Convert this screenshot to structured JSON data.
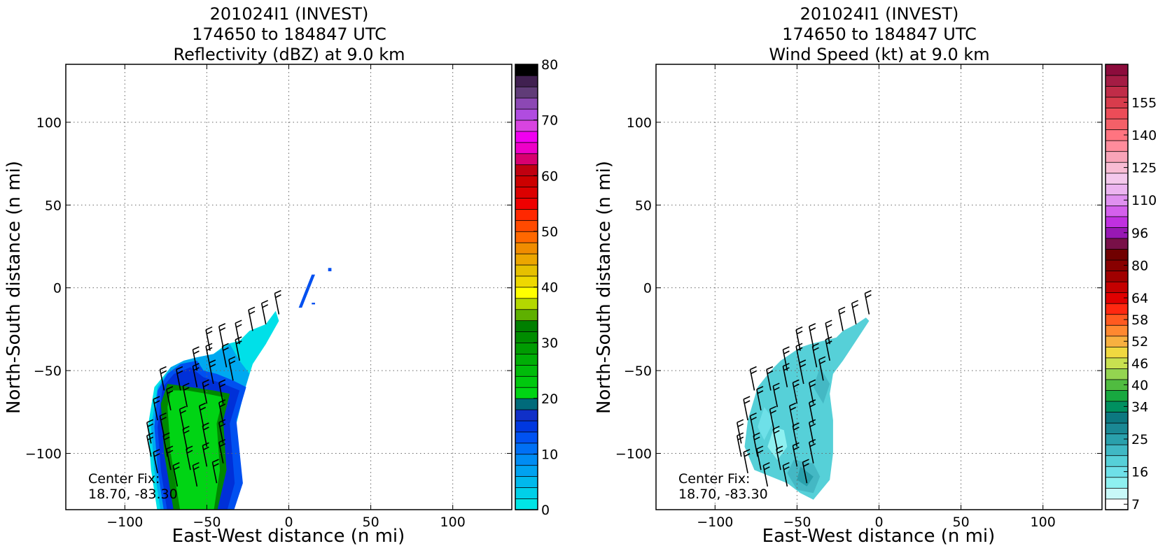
{
  "chart_data": [
    {
      "type": "heatmap",
      "title_lines": [
        "201024I1 (INVEST)",
        "174650 to 184847 UTC",
        "Reflectivity (dBZ) at 9.0 km"
      ],
      "xlabel": "East-West distance (n mi)",
      "ylabel": "North-South distance (n mi)",
      "xlim": [
        -136,
        136
      ],
      "ylim": [
        -134,
        135
      ],
      "xticks": [
        -100,
        -50,
        0,
        50,
        100
      ],
      "yticks": [
        -100,
        -50,
        0,
        50,
        100
      ],
      "grid": true,
      "annotation": [
        "Center Fix:",
        "18.70, -83.30"
      ],
      "colorbar": {
        "min": 0,
        "max": 80,
        "tick_values": [
          0,
          10,
          20,
          30,
          40,
          50,
          60,
          70,
          80
        ],
        "colors": [
          "#00e5e5",
          "#00d0e8",
          "#00b9ec",
          "#00a2f0",
          "#008cf3",
          "#0070f5",
          "#0052f2",
          "#0038e0",
          "#1030c8",
          "#006a7a",
          "#00d414",
          "#00c80e",
          "#00bb0a",
          "#00ae06",
          "#009c02",
          "#008c00",
          "#007f00",
          "#5eb000",
          "#b4d800",
          "#ffff00",
          "#eed800",
          "#e6c000",
          "#eca600",
          "#f08c00",
          "#ff6800",
          "#ff4a00",
          "#ff2800",
          "#ee0000",
          "#dc0000",
          "#cc0000",
          "#c00010",
          "#d80070",
          "#ee00c8",
          "#f000f0",
          "#d844e0",
          "#b04ce0",
          "#8c48b4",
          "#603c78",
          "#402050",
          "#000000"
        ]
      },
      "field": {
        "color": "#00c814",
        "polygons": [
          {
            "color": "#00e0e8",
            "points": [
              [
                -8,
                -14
              ],
              [
                -14,
                -22
              ],
              [
                -24,
                -26
              ],
              [
                -30,
                -32
              ],
              [
                -38,
                -34
              ],
              [
                -46,
                -40
              ],
              [
                -56,
                -42
              ],
              [
                -64,
                -44
              ],
              [
                -72,
                -48
              ],
              [
                -82,
                -60
              ],
              [
                -86,
                -84
              ],
              [
                -84,
                -110
              ],
              [
                -80,
                -136
              ],
              [
                -34,
                -136
              ],
              [
                -30,
                -116
              ],
              [
                -32,
                -82
              ],
              [
                -27,
                -62
              ],
              [
                -22,
                -46
              ],
              [
                -14,
                -34
              ],
              [
                -6,
                -20
              ]
            ]
          },
          {
            "color": "#00a8f0",
            "points": [
              [
                -36,
                -34
              ],
              [
                -46,
                -40
              ],
              [
                -56,
                -42
              ],
              [
                -64,
                -44
              ],
              [
                -72,
                -48
              ],
              [
                -80,
                -60
              ],
              [
                -84,
                -84
              ],
              [
                -82,
                -110
              ],
              [
                -78,
                -136
              ],
              [
                -34,
                -136
              ],
              [
                -30,
                -116
              ],
              [
                -32,
                -82
              ],
              [
                -27,
                -62
              ],
              [
                -24,
                -52
              ],
              [
                -30,
                -44
              ]
            ]
          },
          {
            "color": "#0050f0",
            "points": [
              [
                -56,
                -44
              ],
              [
                -66,
                -46
              ],
              [
                -74,
                -52
              ],
              [
                -80,
                -62
              ],
              [
                -82,
                -84
              ],
              [
                -80,
                -110
              ],
              [
                -76,
                -136
              ],
              [
                -34,
                -136
              ],
              [
                -28,
                -118
              ],
              [
                -32,
                -80
              ],
              [
                -26,
                -60
              ],
              [
                -34,
                -56
              ],
              [
                -44,
                -52
              ],
              [
                -52,
                -50
              ]
            ]
          },
          {
            "color": "#0030d8",
            "points": [
              [
                -60,
                -48
              ],
              [
                -70,
                -52
              ],
              [
                -77,
                -60
              ],
              [
                -80,
                -84
              ],
              [
                -78,
                -110
              ],
              [
                -74,
                -136
              ],
              [
                -38,
                -136
              ],
              [
                -33,
                -118
              ],
              [
                -36,
                -82
              ],
              [
                -30,
                -62
              ],
              [
                -40,
                -58
              ],
              [
                -52,
                -54
              ]
            ]
          },
          {
            "color": "#008800",
            "points": [
              [
                -74,
                -58
              ],
              [
                -78,
                -70
              ],
              [
                -76,
                -100
              ],
              [
                -70,
                -136
              ],
              [
                -44,
                -136
              ],
              [
                -38,
                -110
              ],
              [
                -40,
                -80
              ],
              [
                -36,
                -64
              ],
              [
                -46,
                -62
              ],
              [
                -60,
                -60
              ]
            ]
          },
          {
            "color": "#00d414",
            "points": [
              [
                -72,
                -62
              ],
              [
                -74,
                -72
              ],
              [
                -72,
                -100
              ],
              [
                -66,
                -136
              ],
              [
                -46,
                -136
              ],
              [
                -42,
                -110
              ],
              [
                -44,
                -82
              ],
              [
                -40,
                -66
              ],
              [
                -50,
                -64
              ],
              [
                -62,
                -62
              ]
            ]
          },
          {
            "color": "#0050f0",
            "points": [
              [
                10,
                -2
              ],
              [
                14,
                8
              ],
              [
                16,
                8
              ],
              [
                12,
                -2
              ],
              [
                8,
                -12
              ],
              [
                6,
                -12
              ]
            ]
          },
          {
            "color": "#0050f0",
            "points": [
              [
                24,
                12
              ],
              [
                26,
                12
              ],
              [
                26,
                10
              ],
              [
                24,
                10
              ]
            ]
          },
          {
            "color": "#0050f0",
            "points": [
              [
                14,
                -10
              ],
              [
                16,
                -10
              ],
              [
                16,
                -9
              ],
              [
                14,
                -9
              ]
            ]
          }
        ]
      },
      "barbs": [
        [
          -6,
          -16
        ],
        [
          -14,
          -22
        ],
        [
          -22,
          -26
        ],
        [
          -30,
          -34
        ],
        [
          -40,
          -36
        ],
        [
          -48,
          -38
        ],
        [
          -30,
          -44
        ],
        [
          -38,
          -48
        ],
        [
          -48,
          -48
        ],
        [
          -56,
          -50
        ],
        [
          -34,
          -56
        ],
        [
          -46,
          -58
        ],
        [
          -56,
          -60
        ],
        [
          -66,
          -62
        ],
        [
          -76,
          -62
        ],
        [
          -40,
          -70
        ],
        [
          -50,
          -70
        ],
        [
          -62,
          -72
        ],
        [
          -72,
          -74
        ],
        [
          -80,
          -80
        ],
        [
          -40,
          -82
        ],
        [
          -52,
          -84
        ],
        [
          -64,
          -86
        ],
        [
          -76,
          -90
        ],
        [
          -84,
          -94
        ],
        [
          -40,
          -94
        ],
        [
          -50,
          -96
        ],
        [
          -62,
          -98
        ],
        [
          -74,
          -102
        ],
        [
          -84,
          -102
        ],
        [
          -40,
          -106
        ],
        [
          -50,
          -108
        ],
        [
          -60,
          -110
        ],
        [
          -72,
          -110
        ],
        [
          -80,
          -112
        ],
        [
          -44,
          -118
        ],
        [
          -56,
          -120
        ],
        [
          -68,
          -120
        ]
      ]
    },
    {
      "type": "heatmap",
      "title_lines": [
        "201024I1 (INVEST)",
        "174650 to 184847 UTC",
        "Wind Speed (kt) at 9.0 km"
      ],
      "xlabel": "East-West distance (n mi)",
      "ylabel": "North-South distance (n mi)",
      "xlim": [
        -136,
        136
      ],
      "ylim": [
        -134,
        135
      ],
      "xticks": [
        -100,
        -50,
        0,
        50,
        100
      ],
      "yticks": [
        -100,
        -50,
        0,
        50,
        100
      ],
      "grid": true,
      "annotation": [
        "Center Fix:",
        "18.70, -83.30"
      ],
      "colorbar": {
        "min": 7,
        "max": 160,
        "tick_values": [
          7,
          16,
          25,
          34,
          40,
          46,
          52,
          58,
          64,
          80,
          96,
          110,
          125,
          140,
          155
        ],
        "tick_slots": [
          0,
          3,
          6,
          9,
          11,
          13,
          15,
          17,
          19,
          22,
          25,
          28,
          31,
          34,
          37
        ],
        "colors": [
          "#ffffff",
          "#c8f8f8",
          "#8ef0f0",
          "#6ee0e8",
          "#56d0d8",
          "#40b8c4",
          "#2aa0ac",
          "#1a8894",
          "#0c7880",
          "#009060",
          "#18a840",
          "#50bc40",
          "#94d450",
          "#c8e050",
          "#f0d840",
          "#f8b040",
          "#ff8830",
          "#ff5a20",
          "#ff2810",
          "#e00000",
          "#c40000",
          "#a00000",
          "#880000",
          "#700000",
          "#781048",
          "#9818b4",
          "#c030e0",
          "#d460ec",
          "#e090f0",
          "#ecb4f0",
          "#f4c8ec",
          "#f8bcd4",
          "#f8a4b8",
          "#ff8c9c",
          "#ff7480",
          "#f46068",
          "#ec4c58",
          "#d83c4c",
          "#c02c48",
          "#a41c44",
          "#8c0c3c"
        ]
      },
      "field": {
        "color": "#56d0d8",
        "polygons": [
          {
            "color": "#56d0d8",
            "points": [
              [
                -8,
                -18
              ],
              [
                -14,
                -22
              ],
              [
                -22,
                -26
              ],
              [
                -26,
                -30
              ],
              [
                -34,
                -32
              ],
              [
                -42,
                -34
              ],
              [
                -48,
                -36
              ],
              [
                -54,
                -40
              ],
              [
                -60,
                -44
              ],
              [
                -66,
                -50
              ],
              [
                -74,
                -60
              ],
              [
                -80,
                -80
              ],
              [
                -82,
                -96
              ],
              [
                -76,
                -110
              ],
              [
                -66,
                -114
              ],
              [
                -56,
                -118
              ],
              [
                -48,
                -124
              ],
              [
                -40,
                -128
              ],
              [
                -30,
                -116
              ],
              [
                -28,
                -100
              ],
              [
                -28,
                -80
              ],
              [
                -30,
                -64
              ],
              [
                -28,
                -52
              ],
              [
                -22,
                -44
              ],
              [
                -14,
                -32
              ],
              [
                -6,
                -20
              ]
            ]
          },
          {
            "color": "#44b8c4",
            "points": [
              [
                -52,
                -104
              ],
              [
                -56,
                -112
              ],
              [
                -50,
                -122
              ],
              [
                -40,
                -124
              ],
              [
                -36,
                -114
              ],
              [
                -40,
                -106
              ]
            ]
          },
          {
            "color": "#2aa0ac",
            "points": [
              [
                -48,
                -108
              ],
              [
                -50,
                -116
              ],
              [
                -44,
                -120
              ],
              [
                -40,
                -114
              ]
            ]
          },
          {
            "color": "#8ef0f0",
            "points": [
              [
                -64,
                -84
              ],
              [
                -68,
                -96
              ],
              [
                -62,
                -104
              ],
              [
                -56,
                -96
              ],
              [
                -58,
                -86
              ]
            ]
          },
          {
            "color": "#6ee0e8",
            "points": [
              [
                -70,
                -72
              ],
              [
                -74,
                -84
              ],
              [
                -70,
                -92
              ],
              [
                -64,
                -80
              ]
            ]
          },
          {
            "color": "#44b8c4",
            "points": [
              [
                -36,
                -48
              ],
              [
                -40,
                -60
              ],
              [
                -34,
                -70
              ],
              [
                -30,
                -58
              ]
            ]
          }
        ]
      },
      "barbs": [
        [
          -6,
          -16
        ],
        [
          -14,
          -22
        ],
        [
          -22,
          -26
        ],
        [
          -30,
          -34
        ],
        [
          -40,
          -36
        ],
        [
          -48,
          -38
        ],
        [
          -30,
          -44
        ],
        [
          -38,
          -48
        ],
        [
          -48,
          -48
        ],
        [
          -56,
          -50
        ],
        [
          -34,
          -56
        ],
        [
          -46,
          -58
        ],
        [
          -56,
          -60
        ],
        [
          -66,
          -62
        ],
        [
          -76,
          -62
        ],
        [
          -40,
          -70
        ],
        [
          -50,
          -70
        ],
        [
          -62,
          -72
        ],
        [
          -72,
          -74
        ],
        [
          -80,
          -80
        ],
        [
          -40,
          -82
        ],
        [
          -52,
          -84
        ],
        [
          -64,
          -86
        ],
        [
          -76,
          -90
        ],
        [
          -84,
          -94
        ],
        [
          -40,
          -94
        ],
        [
          -50,
          -96
        ],
        [
          -62,
          -98
        ],
        [
          -74,
          -102
        ],
        [
          -84,
          -102
        ],
        [
          -40,
          -106
        ],
        [
          -50,
          -108
        ],
        [
          -60,
          -110
        ],
        [
          -72,
          -110
        ],
        [
          -80,
          -112
        ],
        [
          -44,
          -118
        ],
        [
          -56,
          -120
        ],
        [
          -68,
          -120
        ]
      ]
    }
  ]
}
